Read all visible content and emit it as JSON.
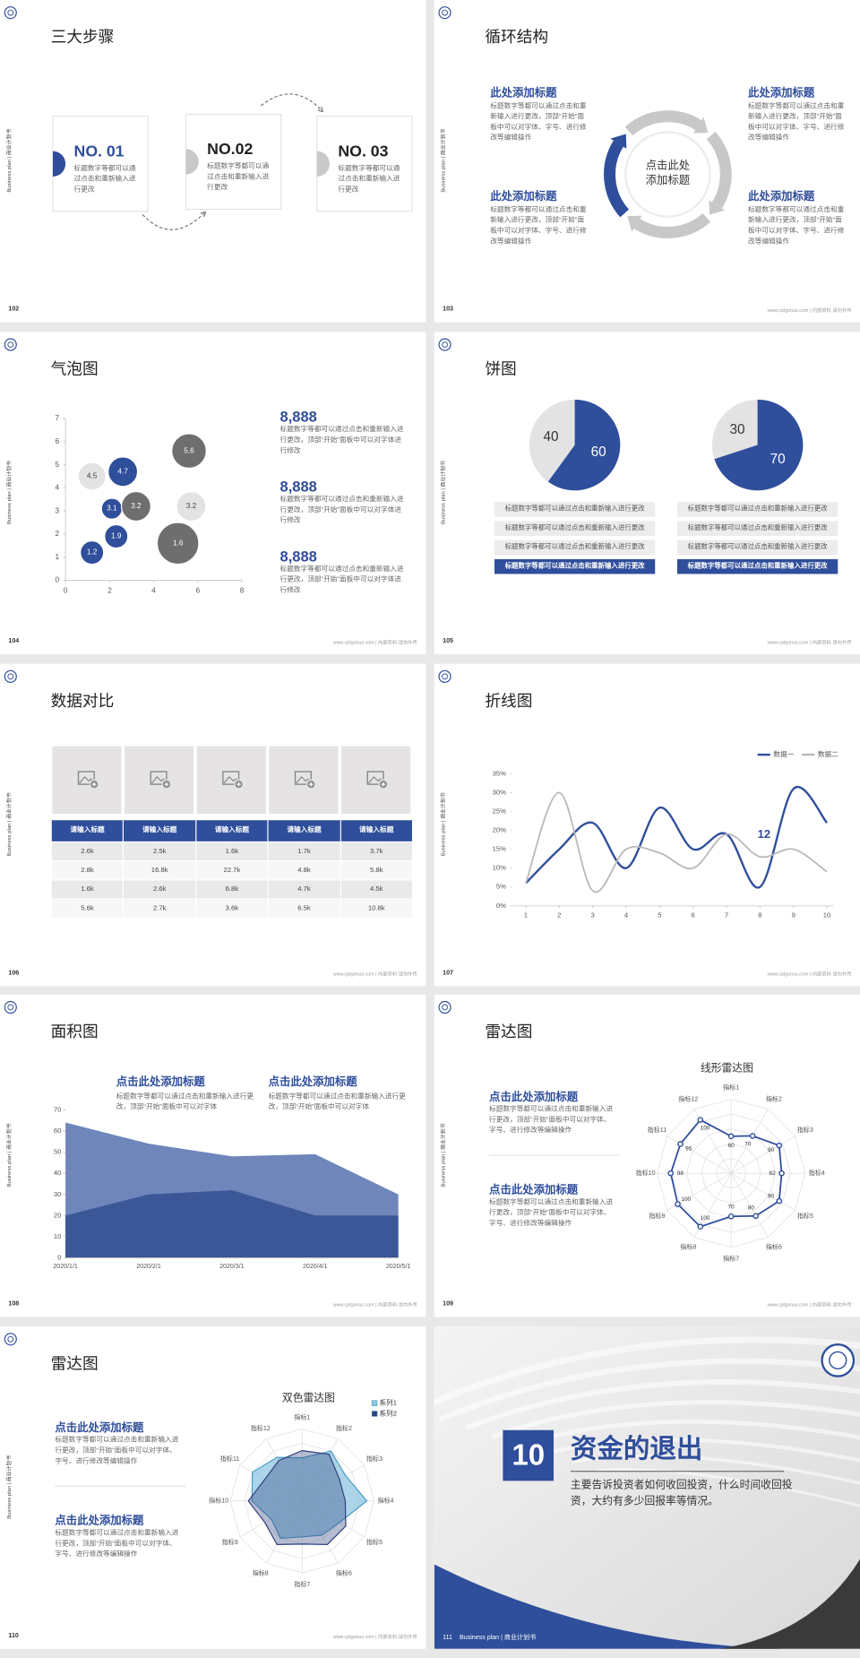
{
  "side_label": "Business plan | 商业计划书",
  "footer": "www.cptgonus.com | 内部资料 请勿外传",
  "slides": [
    {
      "page": "102",
      "title": "三大步骤",
      "steps": [
        {
          "label": "NO. 01",
          "text": "标题数字等都可以通过点击和重新输入进行更改"
        },
        {
          "label": "NO.02",
          "text": "标题数字等都可以通过点击和重新输入进行更改"
        },
        {
          "label": "NO. 03",
          "text": "标题数字等都可以通过点击和重新输入进行更改"
        }
      ]
    },
    {
      "page": "103",
      "title": "循环结构",
      "center": "点击此处添加标题",
      "blocks": [
        {
          "heading": "此处添加标题",
          "text": "标题数字等都可以通过点击和重新输入进行更改，顶部“开始”面板中可以对字体、字号、进行修改等编辑操作"
        },
        {
          "heading": "此处添加标题",
          "text": "标题数字等都可以通过点击和重新输入进行更改，顶部“开始”面板中可以对字体、字号、进行修改等编辑操作"
        },
        {
          "heading": "此处添加标题",
          "text": "标题数字等都可以通过点击和重新输入进行更改，顶部“开始”面板中可以对字体、字号、进行修改等编辑操作"
        },
        {
          "heading": "此处添加标题",
          "text": "标题数字等都可以通过点击和重新输入进行更改，顶部“开始”面板中可以对字体、字号、进行修改等编辑操作"
        }
      ]
    },
    {
      "page": "104",
      "title": "气泡图",
      "chart": {
        "type": "bubble",
        "xlim": [
          0,
          8
        ],
        "xticks": [
          0,
          2,
          4,
          6,
          8
        ],
        "ylim": [
          0,
          7
        ],
        "yticks": [
          0,
          1,
          2,
          3,
          4,
          5,
          6,
          7
        ],
        "x": [
          1.2,
          2.3,
          2.1,
          3.2,
          1.2,
          2.6,
          5.6,
          5.7,
          5.1
        ],
        "values": [
          1.2,
          1.9,
          3.1,
          3.2,
          4.5,
          4.7,
          5.6,
          3.2,
          1.6
        ],
        "sizes": [
          25,
          25,
          20,
          40,
          35,
          40,
          55,
          40,
          80
        ],
        "colors": [
          "#2f4e9b",
          "#2f4e9b",
          "#2f4e9b",
          "#6e6e6e",
          "#e3e3e3",
          "#2f4e9b",
          "#6e6e6e",
          "#e3e3e3",
          "#6e6e6e"
        ]
      },
      "stats": [
        {
          "value": "8,888",
          "text": "标题数字等都可以通过点击和重新输入进行更改，顶部“开始”面板中可以对字体进行修改"
        },
        {
          "value": "8,888",
          "text": "标题数字等都可以通过点击和重新输入进行更改，顶部“开始”面板中可以对字体进行修改"
        },
        {
          "value": "8,888",
          "text": "标题数字等都可以通过点击和重新输入进行更改，顶部“开始”面板中可以对字体进行修改"
        }
      ]
    },
    {
      "page": "105",
      "title": "饼图",
      "charts": [
        {
          "type": "pie",
          "values": [
            40,
            60
          ],
          "colors": [
            "#e3e3e3",
            "#2f4e9b"
          ]
        },
        {
          "type": "pie",
          "values": [
            30,
            70
          ],
          "colors": [
            "#e3e3e3",
            "#2f4e9b"
          ]
        }
      ],
      "lists": [
        [
          "标题数字等都可以通过点击和重新输入进行更改",
          "标题数字等都可以通过点击和重新输入进行更改",
          "标题数字等都可以通过点击和重新输入进行更改",
          "标题数字等都可以通过点击和重新输入进行更改"
        ],
        [
          "标题数字等都可以通过点击和重新输入进行更改",
          "标题数字等都可以通过点击和重新输入进行更改",
          "标题数字等都可以通过点击和重新输入进行更改",
          "标题数字等都可以通过点击和重新输入进行更改"
        ]
      ]
    },
    {
      "page": "106",
      "title": "数据对比",
      "table": {
        "header": [
          "请输入标题",
          "请输入标题",
          "请输入标题",
          "请输入标题",
          "请输入标题"
        ],
        "rows": [
          [
            "2.6k",
            "2.5k",
            "1.6k",
            "1.7k",
            "3.7k"
          ],
          [
            "2.8k",
            "16.8k",
            "22.7k",
            "4.8k",
            "5.8k"
          ],
          [
            "1.6k",
            "2.6k",
            "6.8k",
            "4.7k",
            "4.5k"
          ],
          [
            "5.6k",
            "2.7k",
            "3.6k",
            "6.5k",
            "10.8k"
          ]
        ]
      }
    },
    {
      "page": "107",
      "title": "折线图",
      "chart": {
        "type": "line",
        "x": [
          1,
          2,
          3,
          4,
          5,
          6,
          7,
          8,
          9,
          10
        ],
        "xlim": [
          0.6,
          10.2
        ],
        "xticks": [
          1,
          2,
          3,
          4,
          5,
          6,
          7,
          8,
          9,
          10
        ],
        "ylim": [
          0,
          35
        ],
        "yticks": [
          {
            "value": 0,
            "label": "0%"
          },
          {
            "value": 5,
            "label": "5%"
          },
          {
            "value": 10,
            "label": "10%"
          },
          {
            "value": 15,
            "label": "15%"
          },
          {
            "value": 20,
            "label": "20%"
          },
          {
            "value": 25,
            "label": "25%"
          },
          {
            "value": 30,
            "label": "30%"
          },
          {
            "value": 35,
            "label": "35%"
          }
        ],
        "series": [
          {
            "name": "数据一",
            "color": "#2f4e9b",
            "values": [
              6,
              15,
              22,
              10,
              26,
              15,
              19,
              5,
              31,
              22
            ]
          },
          {
            "name": "数据二",
            "color": "#b8b8b8",
            "values": [
              6,
              30,
              4,
              15,
              14,
              10,
              19,
              13,
              15,
              9
            ]
          }
        ],
        "annotation": "12",
        "legend": "top-right"
      }
    },
    {
      "page": "108",
      "title": "面积图",
      "notes": [
        {
          "heading": "点击此处添加标题",
          "text": "标题数字等都可以通过点击和重新输入进行更改，顶部“开始”面板中可以对字体"
        },
        {
          "heading": "点击此处添加标题",
          "text": "标题数字等都可以通过点击和重新输入进行更改，顶部“开始”面板中可以对字体"
        }
      ],
      "chart": {
        "type": "area",
        "categories": [
          "2020/1/1",
          "2020/2/1",
          "2020/3/1",
          "2020/4/1",
          "2020/5/1"
        ],
        "ylim": [
          0,
          70
        ],
        "yticks": [
          0,
          10,
          20,
          30,
          40,
          50,
          60,
          70
        ],
        "series": [
          {
            "color": "#6f86bb",
            "values": [
              64,
              54,
              48,
              49,
              30
            ]
          },
          {
            "color": "#3b5798",
            "values": [
              20,
              30,
              32,
              20,
              20
            ]
          }
        ]
      }
    },
    {
      "page": "109",
      "title": "雷达图",
      "notes": [
        {
          "heading": "点击此处添加标题",
          "text": "标题数字等都可以通过点击和重新输入进行更改，顶部“开始”面板中可以对字体、字号、进行修改等编辑操作"
        },
        {
          "heading": "点击此处添加标题",
          "text": "标题数字等都可以通过点击和重新输入进行更改，顶部“开始”面板中可以对字体、字号、进行修改等编辑操作"
        }
      ],
      "chart": {
        "type": "radar",
        "title": "线形雷达图",
        "categories": [
          "指标1",
          "指标2",
          "指标3",
          "指标4",
          "指标5",
          "指标6",
          "指标7",
          "指标8",
          "指标9",
          "指标10",
          "指标11",
          "指标12"
        ],
        "rlim": [
          0,
          120
        ],
        "data_labels": true,
        "series": [
          {
            "color": "#2f4e9b",
            "values": [
              60,
              70,
              90,
              82,
              90,
              80,
              70,
              100,
              100,
              98,
              95,
              100
            ]
          }
        ]
      }
    },
    {
      "page": "110",
      "title": "雷达图",
      "notes": [
        {
          "heading": "点击此处添加标题",
          "text": "标题数字等都可以通过点击和重新输入进行更改，顶部“开始”面板中可以对字体、字号、进行修改等编辑操作"
        },
        {
          "heading": "点击此处添加标题",
          "text": "标题数字等都可以通过点击和重新输入进行更改，顶部“开始”面板中可以对字体、字号、进行修改等编辑操作"
        }
      ],
      "chart": {
        "type": "radar",
        "title": "双色雷达图",
        "categories": [
          "指标1",
          "指标2",
          "指标3",
          "指标4",
          "指标5",
          "指标6",
          "指标7",
          "指标8",
          "指标9",
          "指标10",
          "指标11",
          "指标12"
        ],
        "rlim": [
          0,
          100
        ],
        "legend": "top-right",
        "series": [
          {
            "name": "系列1",
            "color": "#8fc6e0",
            "values": [
              60,
              80,
              70,
              90,
              60,
              55,
              50,
              60,
              50,
              70,
              80,
              70
            ]
          },
          {
            "name": "系列2",
            "color": "#2e3f7c",
            "values": [
              70,
              75,
              60,
              60,
              70,
              70,
              60,
              70,
              60,
              75,
              60,
              65
            ]
          }
        ]
      }
    },
    {
      "page": "111",
      "number": "10",
      "title": "资金的退出",
      "text": "主要告诉投资者如何收回投资，什么时间收回投资，大约有多少回报率等情况。",
      "footer": "Business plan | 商业计划书"
    }
  ]
}
